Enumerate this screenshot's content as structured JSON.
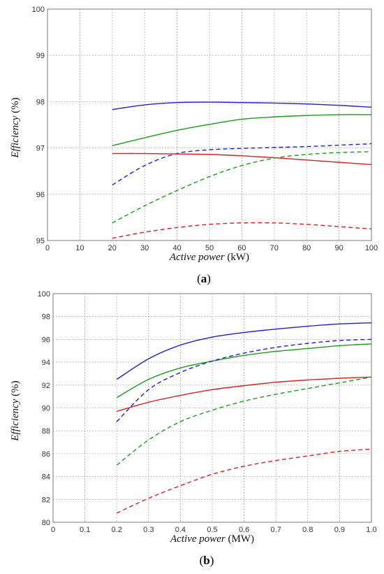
{
  "chart_data": [
    {
      "type": "line",
      "panel_label": "a",
      "xlabel_italic": "Active power",
      "xlabel_unit": "(kW)",
      "ylabel_italic": "Efficiency",
      "ylabel_unit": "(%)",
      "xlim": [
        0,
        100
      ],
      "ylim": [
        95,
        100
      ],
      "xticks": [
        0,
        10,
        20,
        30,
        40,
        50,
        60,
        70,
        80,
        90,
        100
      ],
      "yticks": [
        95,
        96,
        97,
        98,
        99,
        100
      ],
      "grid": true,
      "x": [
        20,
        30,
        40,
        50,
        60,
        70,
        80,
        90,
        100
      ],
      "series": [
        {
          "color": "#1f1fd6",
          "style": "solid",
          "values": [
            97.83,
            97.93,
            97.98,
            97.99,
            97.98,
            97.97,
            97.95,
            97.92,
            97.88
          ]
        },
        {
          "color": "#1a9e1a",
          "style": "solid",
          "values": [
            97.05,
            97.22,
            97.38,
            97.51,
            97.62,
            97.67,
            97.7,
            97.72,
            97.72
          ]
        },
        {
          "color": "#1f1fd6",
          "style": "dashed",
          "values": [
            96.2,
            96.62,
            96.88,
            96.96,
            96.99,
            97.01,
            97.03,
            97.06,
            97.09
          ]
        },
        {
          "color": "#e02020",
          "style": "solid",
          "values": [
            96.88,
            96.88,
            96.87,
            96.86,
            96.83,
            96.79,
            96.74,
            96.69,
            96.64
          ]
        },
        {
          "color": "#1a9e1a",
          "style": "dashed",
          "values": [
            95.38,
            95.75,
            96.08,
            96.38,
            96.62,
            96.78,
            96.86,
            96.9,
            96.92
          ]
        },
        {
          "color": "#e02020",
          "style": "dashed",
          "values": [
            95.05,
            95.18,
            95.28,
            95.35,
            95.38,
            95.38,
            95.35,
            95.3,
            95.25
          ]
        }
      ]
    },
    {
      "type": "line",
      "panel_label": "b",
      "xlabel_italic": "Active power",
      "xlabel_unit": "(MW)",
      "ylabel_italic": "Efficiency",
      "ylabel_unit": "(%)",
      "xlim": [
        0,
        1.0
      ],
      "ylim": [
        80,
        100
      ],
      "xticks": [
        "0",
        "0.1",
        "0.2",
        "0.3",
        "0.4",
        "0.5",
        "0.6",
        "0.7",
        "0.8",
        "0.9",
        "1.0"
      ],
      "yticks": [
        80,
        82,
        84,
        86,
        88,
        90,
        92,
        94,
        96,
        98,
        100
      ],
      "grid": true,
      "x": [
        0.2,
        0.3,
        0.4,
        0.5,
        0.6,
        0.7,
        0.8,
        0.9,
        1.0
      ],
      "series": [
        {
          "color": "#1f1fd6",
          "style": "solid",
          "values": [
            92.5,
            94.3,
            95.5,
            96.2,
            96.6,
            96.9,
            97.15,
            97.35,
            97.45
          ]
        },
        {
          "color": "#1a9e1a",
          "style": "solid",
          "values": [
            90.9,
            92.5,
            93.5,
            94.1,
            94.6,
            94.95,
            95.2,
            95.45,
            95.6
          ]
        },
        {
          "color": "#1f1fd6",
          "style": "dashed",
          "values": [
            88.8,
            91.6,
            93.1,
            94.1,
            94.8,
            95.3,
            95.65,
            95.9,
            96.0
          ]
        },
        {
          "color": "#e02020",
          "style": "solid",
          "values": [
            89.7,
            90.5,
            91.1,
            91.6,
            91.95,
            92.25,
            92.45,
            92.6,
            92.7
          ]
        },
        {
          "color": "#1a9e1a",
          "style": "dashed",
          "values": [
            85.0,
            87.2,
            88.8,
            89.8,
            90.6,
            91.2,
            91.7,
            92.2,
            92.7
          ]
        },
        {
          "color": "#e02020",
          "style": "dashed",
          "values": [
            80.8,
            82.1,
            83.2,
            84.2,
            84.9,
            85.4,
            85.8,
            86.2,
            86.4
          ]
        }
      ]
    }
  ]
}
